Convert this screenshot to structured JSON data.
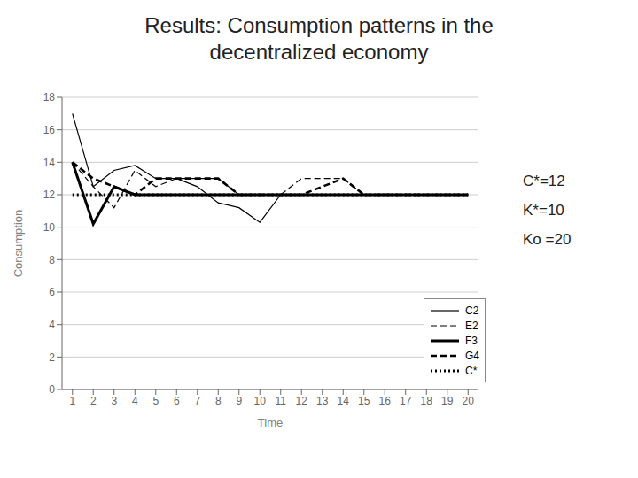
{
  "chart_data": {
    "type": "line",
    "title": "Results: Consumption patterns in the\ndecentralized economy",
    "xlabel": "Time",
    "ylabel": "Consumption",
    "x": [
      1,
      2,
      3,
      4,
      5,
      6,
      7,
      8,
      9,
      10,
      11,
      12,
      13,
      14,
      15,
      16,
      17,
      18,
      19,
      20
    ],
    "series": [
      {
        "name": "C2",
        "color": "#000000",
        "line_style": "solid",
        "values": [
          17.0,
          12.5,
          13.5,
          13.8,
          13.0,
          13.0,
          12.5,
          11.5,
          11.2,
          10.3,
          12.0,
          12.0,
          12.0,
          12.0,
          12.0,
          12.0,
          12.0,
          12.0,
          12.0,
          12.0
        ]
      },
      {
        "name": "E2",
        "color": "#000000",
        "line_style": "dashed",
        "values": [
          14.0,
          12.5,
          11.2,
          13.5,
          12.5,
          13.0,
          13.0,
          13.0,
          12.0,
          12.0,
          12.0,
          13.0,
          13.0,
          13.0,
          12.0,
          12.0,
          12.0,
          12.0,
          12.0,
          12.0
        ]
      },
      {
        "name": "F3",
        "color": "#000000",
        "line_style": "solid",
        "values": [
          14.0,
          10.2,
          12.5,
          12.0,
          12.0,
          12.0,
          12.0,
          12.0,
          12.0,
          12.0,
          12.0,
          12.0,
          12.0,
          12.0,
          12.0,
          12.0,
          12.0,
          12.0,
          12.0,
          12.0
        ]
      },
      {
        "name": "G4",
        "color": "#000000",
        "line_style": "dashed",
        "values": [
          14.0,
          13.0,
          12.5,
          12.0,
          13.0,
          13.0,
          13.0,
          13.0,
          12.0,
          12.0,
          12.0,
          12.0,
          12.5,
          13.0,
          12.0,
          12.0,
          12.0,
          12.0,
          12.0,
          12.0
        ]
      },
      {
        "name": "C*",
        "color": "#000000",
        "line_style": "dotted",
        "values": [
          12.0,
          12.0,
          12.0,
          12.0,
          12.0,
          12.0,
          12.0,
          12.0,
          12.0,
          12.0,
          12.0,
          12.0,
          12.0,
          12.0,
          12.0,
          12.0,
          12.0,
          12.0,
          12.0,
          12.0
        ]
      }
    ],
    "xlim": [
      0.5,
      20.5
    ],
    "xticks": [
      1,
      2,
      3,
      4,
      5,
      6,
      7,
      8,
      9,
      10,
      11,
      12,
      13,
      14,
      15,
      16,
      17,
      18,
      19,
      20
    ],
    "ylim": [
      0,
      18
    ],
    "yticks": [
      0,
      2,
      4,
      6,
      8,
      10,
      12,
      14,
      16,
      18
    ],
    "grid": true,
    "legend": "lower right",
    "annotations": [
      "C*=12",
      "K*=10",
      "Ko =20"
    ]
  }
}
